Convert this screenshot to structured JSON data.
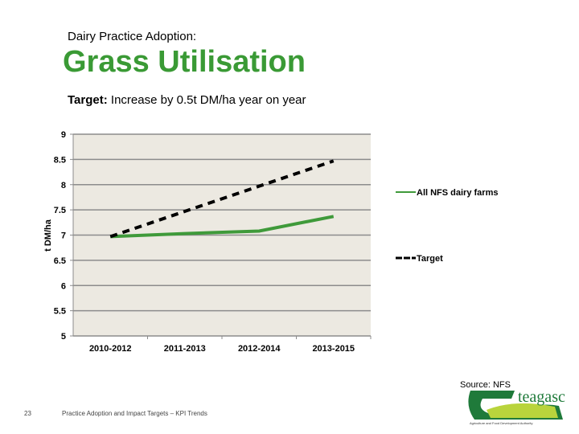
{
  "header": {
    "subtitle": "Dairy Practice Adoption:",
    "title": "Grass Utilisation",
    "target_label": "Target:",
    "target_text": " Increase by 0.5t DM/ha year on year"
  },
  "chart_data": {
    "type": "line",
    "title": "",
    "xlabel": "",
    "ylabel": "t DM/ha",
    "ylim": [
      5,
      9
    ],
    "yticks": [
      "5",
      "5.5",
      "6",
      "6.5",
      "7",
      "7.5",
      "8",
      "8.5",
      "9"
    ],
    "categories": [
      "2010-2012",
      "2011-2013",
      "2012-2014",
      "2013-2015"
    ],
    "grid": true,
    "legend_placement": "right",
    "series": [
      {
        "name": "All NFS dairy farms",
        "values": [
          6.97,
          7.03,
          7.08,
          7.37
        ],
        "color": "#3f9a3a",
        "style": "solid"
      },
      {
        "name": "Target",
        "values": [
          6.97,
          7.47,
          7.97,
          8.47
        ],
        "color": "#000000",
        "style": "dashed"
      }
    ]
  },
  "footer": {
    "source": "Source: NFS",
    "page_number": "23",
    "text": "Practice Adoption and Impact Targets – KPI Trends",
    "logo_text": "teagasc",
    "logo_tagline": "Agriculture and Food Development Authority"
  }
}
